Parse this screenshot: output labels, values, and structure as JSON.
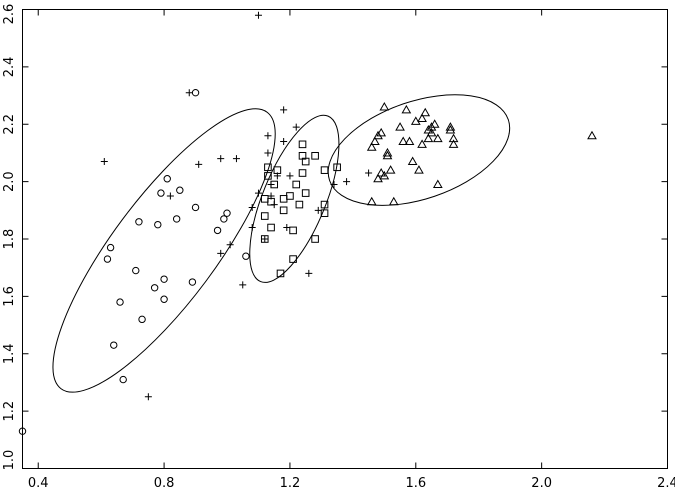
{
  "chart_data": {
    "type": "scatter",
    "title": "",
    "xlabel": "",
    "ylabel": "",
    "xlim": [
      0.35,
      2.4
    ],
    "ylim": [
      1.0,
      2.6
    ],
    "grid": false,
    "x_ticks": [
      "0.4",
      "0.8",
      "1.2",
      "1.6",
      "2.0",
      "2.4"
    ],
    "y_ticks": [
      "1.0",
      "1.2",
      "1.4",
      "1.6",
      "1.8",
      "2.0",
      "2.2",
      "2.4",
      "2.6"
    ],
    "x_tick_values": [
      0.4,
      0.8,
      1.2,
      1.6,
      2.0,
      2.4
    ],
    "y_tick_values": [
      1.0,
      1.2,
      1.4,
      1.6,
      1.8,
      2.0,
      2.2,
      2.4,
      2.6
    ],
    "series": [
      {
        "marker": "circle",
        "points": [
          [
            0.35,
            1.13
          ],
          [
            0.62,
            1.73
          ],
          [
            0.63,
            1.77
          ],
          [
            0.64,
            1.43
          ],
          [
            0.66,
            1.58
          ],
          [
            0.67,
            1.31
          ],
          [
            0.71,
            1.69
          ],
          [
            0.72,
            1.86
          ],
          [
            0.73,
            1.52
          ],
          [
            0.77,
            1.63
          ],
          [
            0.78,
            1.85
          ],
          [
            0.79,
            1.96
          ],
          [
            0.8,
            1.59
          ],
          [
            0.8,
            1.66
          ],
          [
            0.81,
            2.01
          ],
          [
            0.84,
            1.87
          ],
          [
            0.85,
            1.97
          ],
          [
            0.89,
            1.65
          ],
          [
            0.9,
            1.91
          ],
          [
            0.9,
            2.31
          ],
          [
            0.97,
            1.83
          ],
          [
            0.99,
            1.87
          ],
          [
            1.0,
            1.89
          ],
          [
            1.06,
            1.74
          ]
        ]
      },
      {
        "marker": "plus",
        "points": [
          [
            0.61,
            2.07
          ],
          [
            0.75,
            1.25
          ],
          [
            0.82,
            1.95
          ],
          [
            0.88,
            2.31
          ],
          [
            0.91,
            2.06
          ],
          [
            0.98,
            2.08
          ],
          [
            0.98,
            1.75
          ],
          [
            1.01,
            1.78
          ],
          [
            1.03,
            2.08
          ],
          [
            1.05,
            1.64
          ],
          [
            1.08,
            1.91
          ],
          [
            1.08,
            1.84
          ],
          [
            1.1,
            1.96
          ],
          [
            1.1,
            2.58
          ],
          [
            1.12,
            1.8
          ],
          [
            1.13,
            2.16
          ],
          [
            1.13,
            2.1
          ],
          [
            1.14,
            1.99
          ],
          [
            1.14,
            1.95
          ],
          [
            1.15,
            1.92
          ],
          [
            1.16,
            2.02
          ],
          [
            1.18,
            2.25
          ],
          [
            1.18,
            2.14
          ],
          [
            1.19,
            1.84
          ],
          [
            1.2,
            2.02
          ],
          [
            1.22,
            2.19
          ],
          [
            1.26,
            1.68
          ],
          [
            1.29,
            1.9
          ],
          [
            1.34,
            1.99
          ],
          [
            1.38,
            2.0
          ],
          [
            1.45,
            2.03
          ]
        ]
      },
      {
        "marker": "square",
        "points": [
          [
            1.12,
            1.8
          ],
          [
            1.12,
            1.88
          ],
          [
            1.12,
            1.94
          ],
          [
            1.13,
            2.02
          ],
          [
            1.13,
            2.05
          ],
          [
            1.14,
            1.84
          ],
          [
            1.14,
            1.93
          ],
          [
            1.15,
            1.99
          ],
          [
            1.16,
            2.04
          ],
          [
            1.17,
            1.68
          ],
          [
            1.18,
            1.9
          ],
          [
            1.18,
            1.94
          ],
          [
            1.2,
            1.95
          ],
          [
            1.21,
            1.73
          ],
          [
            1.21,
            1.83
          ],
          [
            1.22,
            1.99
          ],
          [
            1.23,
            1.92
          ],
          [
            1.24,
            2.03
          ],
          [
            1.24,
            2.13
          ],
          [
            1.24,
            2.09
          ],
          [
            1.25,
            1.96
          ],
          [
            1.25,
            2.07
          ],
          [
            1.28,
            2.09
          ],
          [
            1.28,
            1.8
          ],
          [
            1.31,
            2.04
          ],
          [
            1.31,
            1.89
          ],
          [
            1.31,
            1.92
          ],
          [
            1.35,
            2.05
          ]
        ]
      },
      {
        "marker": "triangle",
        "points": [
          [
            1.46,
            1.93
          ],
          [
            1.46,
            2.12
          ],
          [
            1.47,
            2.14
          ],
          [
            1.48,
            2.16
          ],
          [
            1.48,
            2.01
          ],
          [
            1.49,
            2.03
          ],
          [
            1.49,
            2.17
          ],
          [
            1.5,
            2.26
          ],
          [
            1.5,
            2.02
          ],
          [
            1.51,
            2.09
          ],
          [
            1.51,
            2.1
          ],
          [
            1.52,
            2.04
          ],
          [
            1.53,
            1.93
          ],
          [
            1.55,
            2.19
          ],
          [
            1.56,
            2.14
          ],
          [
            1.57,
            2.25
          ],
          [
            1.58,
            2.14
          ],
          [
            1.59,
            2.07
          ],
          [
            1.6,
            2.21
          ],
          [
            1.61,
            2.04
          ],
          [
            1.62,
            2.22
          ],
          [
            1.62,
            2.13
          ],
          [
            1.63,
            2.24
          ],
          [
            1.64,
            2.15
          ],
          [
            1.64,
            2.18
          ],
          [
            1.65,
            2.17
          ],
          [
            1.65,
            2.19
          ],
          [
            1.66,
            2.2
          ],
          [
            1.67,
            2.15
          ],
          [
            1.67,
            1.99
          ],
          [
            1.71,
            2.18
          ],
          [
            1.71,
            2.19
          ],
          [
            1.72,
            2.15
          ],
          [
            1.72,
            2.13
          ],
          [
            2.16,
            2.16
          ]
        ]
      }
    ],
    "ellipses": [
      {
        "cx": 0.8,
        "cy": 1.76,
        "rx": 0.548,
        "ry": 0.165,
        "angle": 53.3
      },
      {
        "cx": 1.214,
        "cy": 1.94,
        "rx": 0.284,
        "ry": 0.1,
        "angle": 67.8
      },
      {
        "cx": 1.61,
        "cy": 2.11,
        "rx": 0.3,
        "ry": 0.155,
        "angle": 18.8
      }
    ]
  }
}
